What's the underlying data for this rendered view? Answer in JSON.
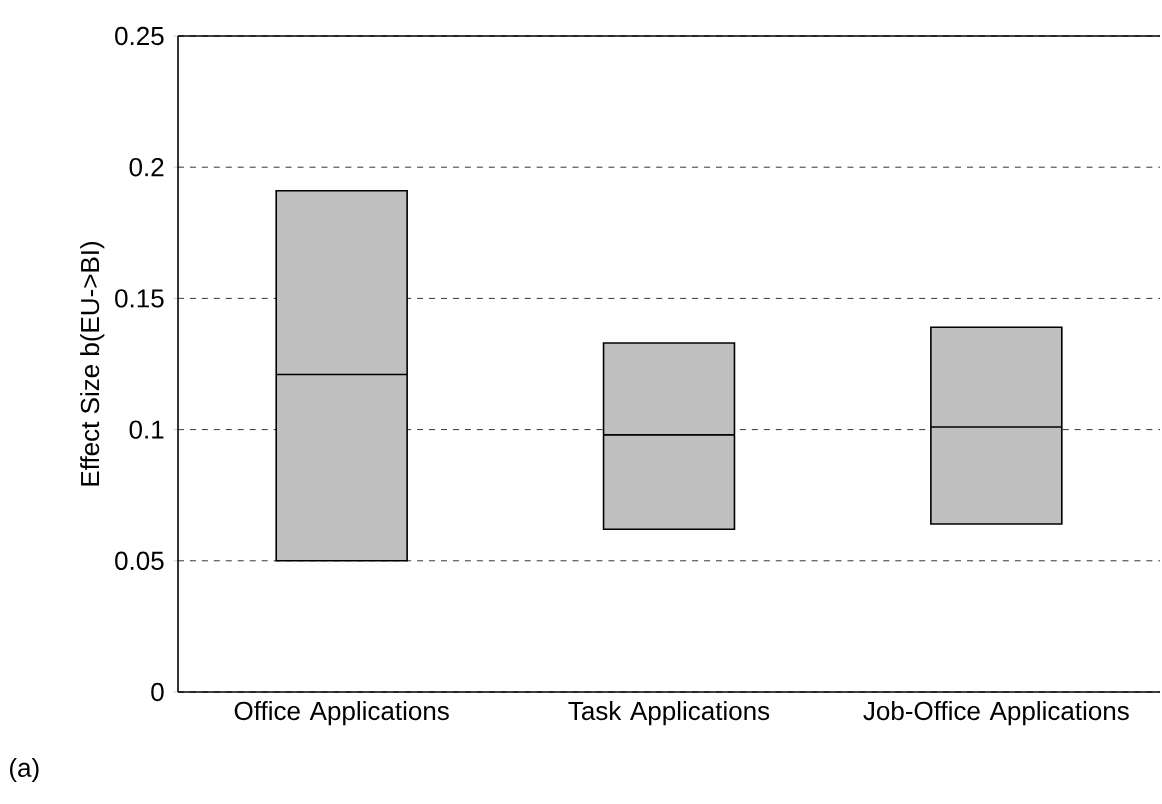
{
  "chart_data": {
    "type": "box",
    "ylabel": "Effect Size b(EU->BI)",
    "categories": [
      "Office Applications",
      "Task Applications",
      "Job-Office Applications"
    ],
    "boxes": [
      {
        "low": 0.05,
        "q1": 0.05,
        "median": 0.121,
        "q3": 0.191,
        "high": 0.191
      },
      {
        "low": 0.062,
        "q1": 0.062,
        "median": 0.098,
        "q3": 0.133,
        "high": 0.133
      },
      {
        "low": 0.064,
        "q1": 0.064,
        "median": 0.101,
        "q3": 0.139,
        "high": 0.139
      }
    ],
    "color": "#c0c0c0",
    "ylim": [
      0,
      0.25
    ],
    "yticks": [
      0,
      0.05,
      0.1,
      0.15,
      0.2,
      0.25
    ],
    "grid": "y",
    "annotations": [
      "(a)"
    ]
  }
}
